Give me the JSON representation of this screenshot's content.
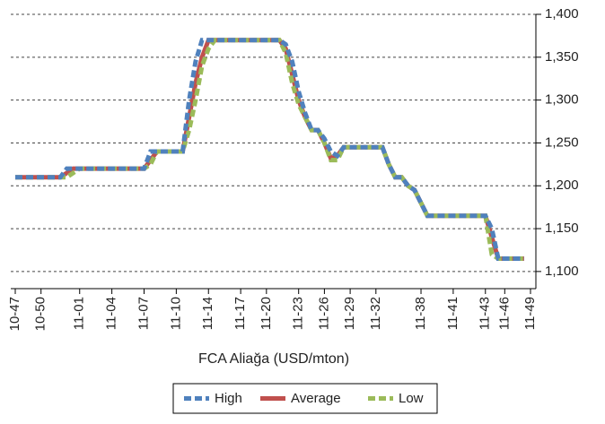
{
  "chart_data": {
    "type": "line",
    "x_label": "FCA Aliağa (USD/mton)",
    "categories": [
      "10-47",
      null,
      null,
      null,
      "10-50",
      null,
      null,
      null,
      null,
      null,
      "11-01",
      null,
      null,
      null,
      null,
      "11-04",
      null,
      null,
      null,
      null,
      "11-07",
      null,
      null,
      null,
      null,
      "11-10",
      null,
      null,
      null,
      null,
      "11-14",
      null,
      null,
      null,
      null,
      "11-17",
      null,
      null,
      null,
      "11-20",
      null,
      null,
      null,
      null,
      "11-23",
      null,
      null,
      null,
      "11-26",
      null,
      null,
      null,
      "11-29",
      null,
      null,
      null,
      "11-32",
      null,
      null,
      null,
      null,
      null,
      null,
      "11-38",
      null,
      null,
      null,
      null,
      "11-41",
      null,
      null,
      null,
      null,
      "11-43",
      null,
      null,
      "11-46",
      null,
      null,
      null,
      "11-49"
    ],
    "series": [
      {
        "name": "High",
        "color": "#4f81bd",
        "dash": true,
        "values": [
          1210,
          1210,
          1210,
          1210,
          1210,
          1210,
          1210,
          1210,
          1220,
          1220,
          1220,
          1220,
          1220,
          1220,
          1220,
          1220,
          1220,
          1220,
          1220,
          1220,
          1220,
          1240,
          1240,
          1240,
          1240,
          1240,
          1240,
          1300,
          1345,
          1370,
          1370,
          1370,
          1370,
          1370,
          1370,
          1370,
          1370,
          1370,
          1370,
          1370,
          1370,
          1370,
          1365,
          1345,
          1310,
          1285,
          1265,
          1265,
          1255,
          1240,
          1235,
          1245,
          1245,
          1245,
          1245,
          1245,
          1245,
          1245,
          1225,
          1210,
          1210,
          1200,
          1195,
          1180,
          1165,
          1165,
          1165,
          1165,
          1165,
          1165,
          1165,
          1165,
          1165,
          1165,
          1150,
          1115,
          1115,
          1115,
          1115,
          1115,
          null
        ]
      },
      {
        "name": "Average",
        "color": "#c0504d",
        "dash": false,
        "values": [
          1210,
          1210,
          1210,
          1210,
          1210,
          1210,
          1210,
          1210,
          1215,
          1220,
          1220,
          1220,
          1220,
          1220,
          1220,
          1220,
          1220,
          1220,
          1220,
          1220,
          1220,
          1230,
          1240,
          1240,
          1240,
          1240,
          1240,
          1280,
          1320,
          1350,
          1370,
          1370,
          1370,
          1370,
          1370,
          1370,
          1370,
          1370,
          1370,
          1370,
          1370,
          1370,
          1360,
          1330,
          1300,
          1280,
          1265,
          1265,
          1250,
          1232,
          1235,
          1245,
          1245,
          1245,
          1245,
          1245,
          1245,
          1245,
          1225,
          1210,
          1210,
          1200,
          1195,
          1180,
          1165,
          1165,
          1165,
          1165,
          1165,
          1165,
          1165,
          1165,
          1165,
          1165,
          1140,
          1115,
          1115,
          1115,
          1115,
          1115,
          null
        ]
      },
      {
        "name": "Low",
        "color": "#9bbb59",
        "dash": true,
        "values": [
          1210,
          1210,
          1210,
          1210,
          1210,
          1210,
          1210,
          1210,
          1210,
          1215,
          1220,
          1220,
          1220,
          1220,
          1220,
          1220,
          1220,
          1220,
          1220,
          1220,
          1220,
          1225,
          1240,
          1240,
          1240,
          1240,
          1240,
          1265,
          1300,
          1340,
          1360,
          1370,
          1370,
          1370,
          1370,
          1370,
          1370,
          1370,
          1370,
          1370,
          1370,
          1370,
          1355,
          1320,
          1295,
          1280,
          1265,
          1265,
          1250,
          1230,
          1230,
          1245,
          1245,
          1245,
          1245,
          1245,
          1245,
          1245,
          1225,
          1210,
          1210,
          1200,
          1195,
          1180,
          1165,
          1165,
          1165,
          1165,
          1165,
          1165,
          1165,
          1165,
          1165,
          1165,
          1120,
          1115,
          1115,
          1115,
          1115,
          1115,
          null
        ]
      }
    ],
    "ylim": [
      1080,
      1400
    ],
    "yticks": [
      {
        "value": 1100,
        "label": "1,100"
      },
      {
        "value": 1150,
        "label": "1,150"
      },
      {
        "value": 1200,
        "label": "1,200"
      },
      {
        "value": 1250,
        "label": "1,250"
      },
      {
        "value": 1300,
        "label": "1,300"
      },
      {
        "value": 1350,
        "label": "1,350"
      },
      {
        "value": 1400,
        "label": "1,400"
      }
    ],
    "grid": true,
    "legend": "bottom"
  }
}
